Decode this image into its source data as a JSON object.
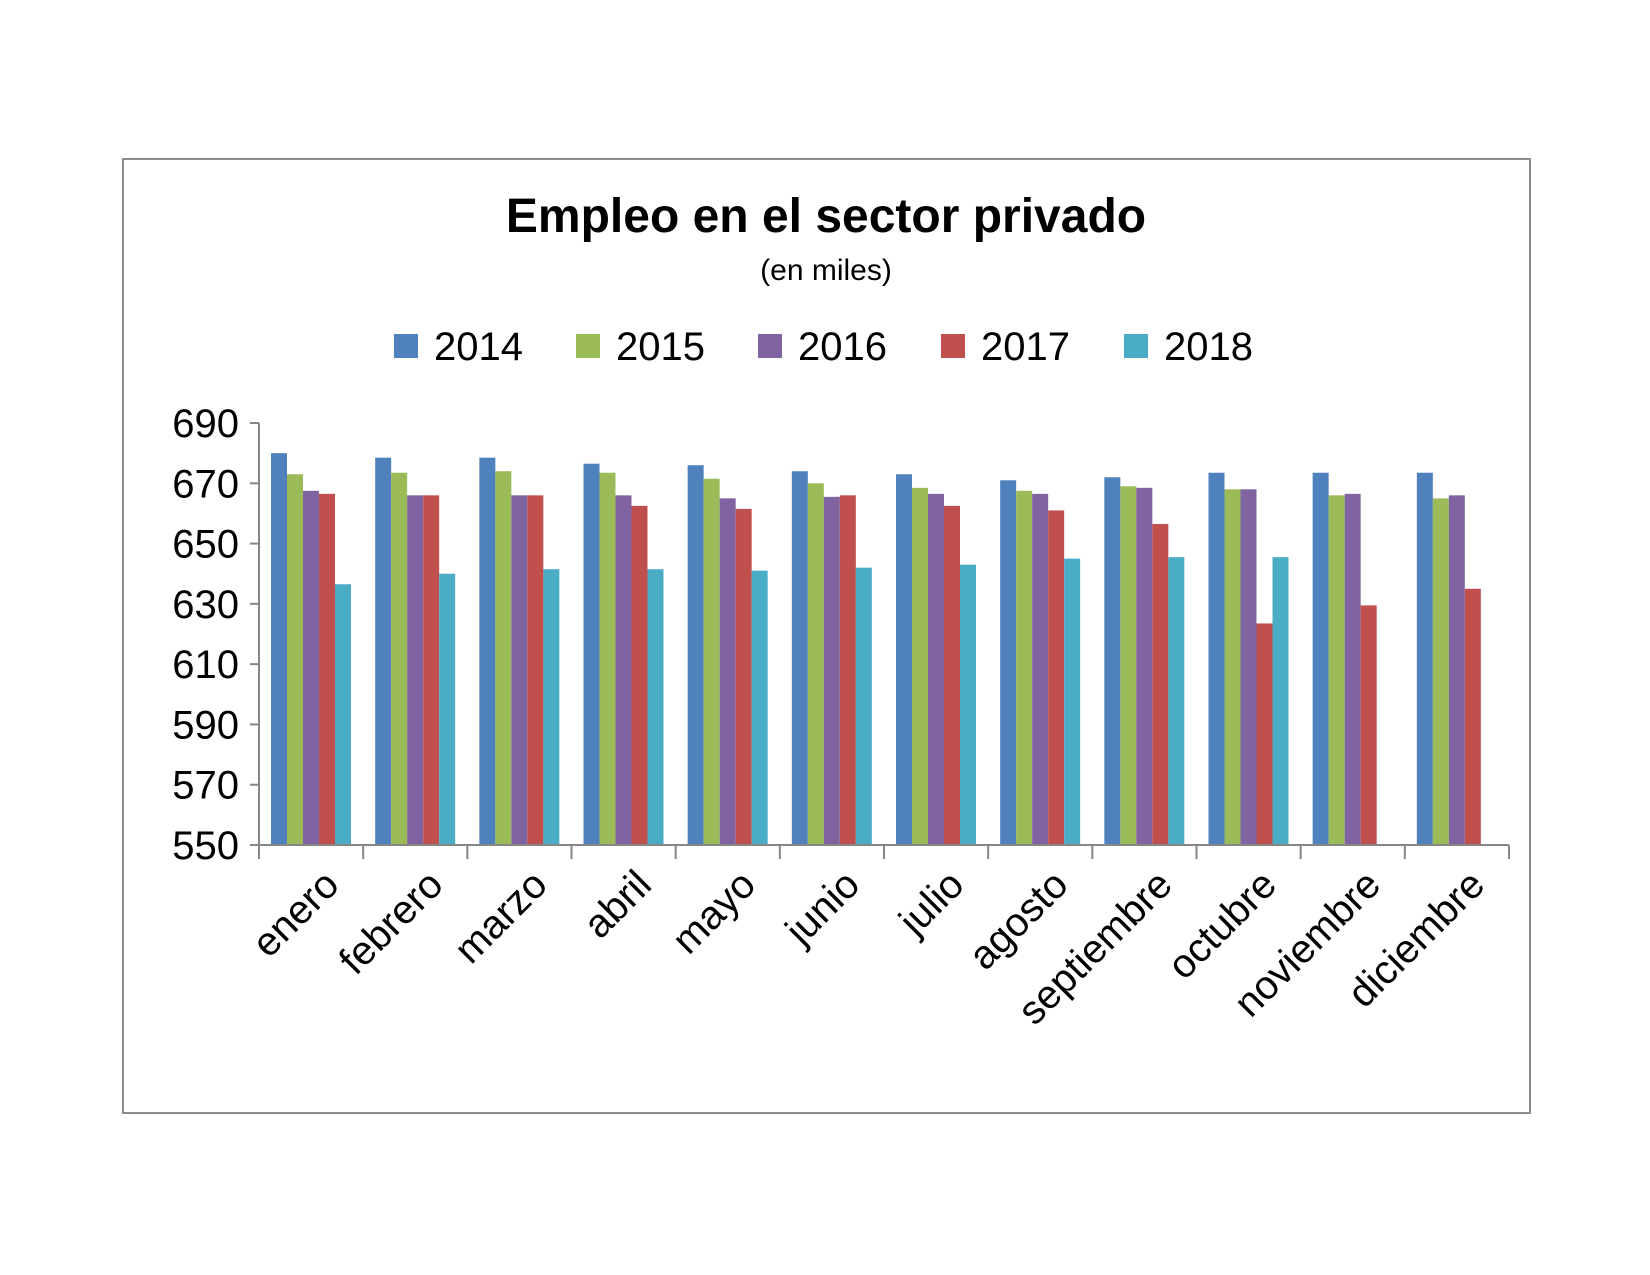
{
  "chart_data": {
    "type": "bar",
    "title": "Empleo en el sector privado",
    "subtitle": "(en miles)",
    "xlabel": "",
    "ylabel": "",
    "ylim": [
      550,
      690
    ],
    "yticks": [
      550,
      570,
      590,
      610,
      630,
      650,
      670,
      690
    ],
    "grid": false,
    "legend_position": "top",
    "categories": [
      "enero",
      "febrero",
      "marzo",
      "abril",
      "mayo",
      "junio",
      "julio",
      "agosto",
      "septiembre",
      "octubre",
      "noviembre",
      "diciembre"
    ],
    "series": [
      {
        "name": "2014",
        "color": "#4f81bd",
        "values": [
          680,
          678.5,
          678.5,
          676.5,
          676,
          674,
          673,
          671,
          672,
          673.5,
          673.5,
          673.5
        ]
      },
      {
        "name": "2015",
        "color": "#9bbb59",
        "values": [
          673,
          673.5,
          674,
          673.5,
          671.5,
          670,
          668.5,
          667.5,
          669,
          668,
          666,
          665
        ]
      },
      {
        "name": "2016",
        "color": "#8064a2",
        "values": [
          667.5,
          666,
          666,
          666,
          665,
          665.5,
          666.5,
          666.5,
          668.5,
          668,
          666.5,
          666
        ]
      },
      {
        "name": "2017",
        "color": "#c0504d",
        "values": [
          666.5,
          666,
          666,
          662.5,
          661.5,
          666,
          662.5,
          661,
          656.5,
          623.5,
          629.5,
          635
        ]
      },
      {
        "name": "2018",
        "color": "#4bacc6",
        "values": [
          636.5,
          640,
          641.5,
          641.5,
          641,
          642,
          643,
          645,
          645.5,
          645.5,
          null,
          null
        ]
      }
    ]
  }
}
